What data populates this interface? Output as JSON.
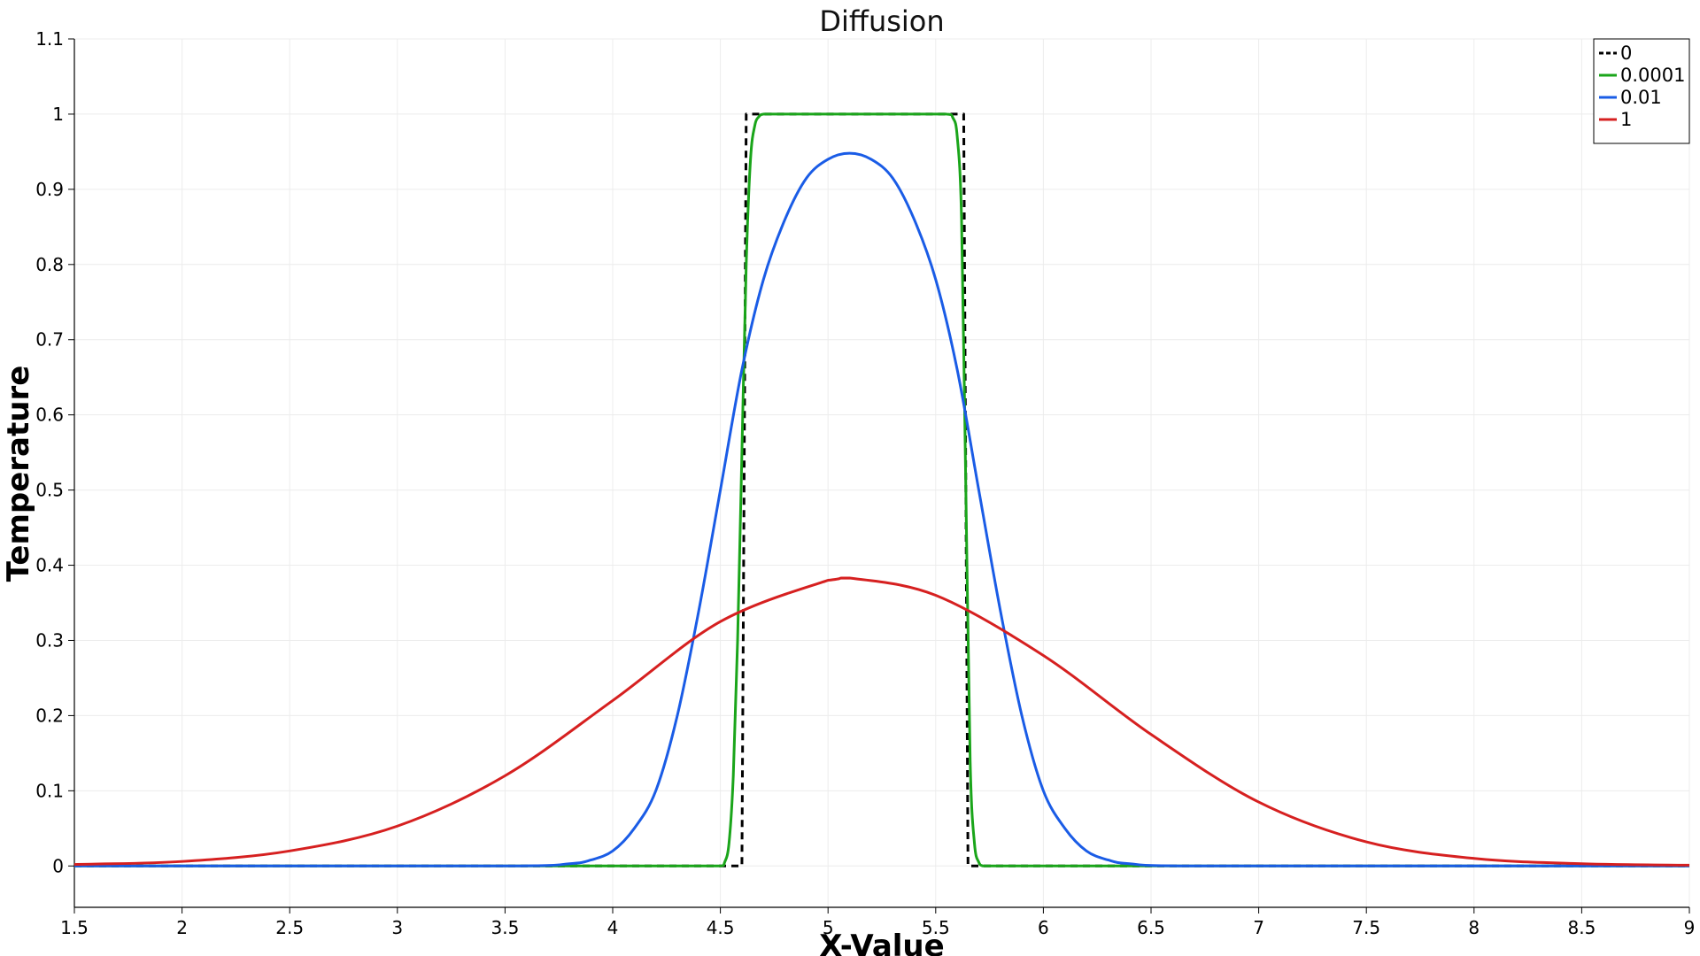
{
  "chart_data": {
    "type": "line",
    "title": "Diffusion",
    "xlabel": "X-Value",
    "ylabel": "Temperature",
    "xlim": [
      1.5,
      9
    ],
    "ylim": [
      -0.055,
      1.1
    ],
    "xticks": [
      1.5,
      2,
      2.5,
      3,
      3.5,
      4,
      4.5,
      5,
      5.5,
      6,
      6.5,
      7,
      7.5,
      8,
      8.5,
      9
    ],
    "xtick_labels": [
      "1.5",
      "2",
      "2.5",
      "3",
      "3.5",
      "4",
      "4.5",
      "5",
      "5.5",
      "6",
      "6.5",
      "7",
      "7.5",
      "8",
      "8.5",
      "9"
    ],
    "yticks": [
      0,
      0.1,
      0.2,
      0.3,
      0.4,
      0.5,
      0.6,
      0.7,
      0.8,
      0.9,
      1,
      1.1
    ],
    "ytick_labels": [
      "0",
      "0.1",
      "0.2",
      "0.3",
      "0.4",
      "0.5",
      "0.6",
      "0.7",
      "0.8",
      "0.9",
      "1",
      "1.1"
    ],
    "grid": true,
    "legend_position": "top-right",
    "series": [
      {
        "name": "0",
        "color": "#000000",
        "style": "dashed",
        "x": [
          1.5,
          4.55,
          4.6,
          4.61,
          4.62,
          4.63,
          5.6,
          5.62,
          5.63,
          5.64,
          5.65,
          5.7,
          9.0
        ],
        "y": [
          0,
          0,
          0,
          0.5,
          1,
          1,
          1,
          1,
          1,
          0.5,
          0,
          0,
          0
        ]
      },
      {
        "name": "0.0001",
        "color": "#1aa51a",
        "style": "solid",
        "x": [
          1.5,
          4.5,
          4.52,
          4.54,
          4.56,
          4.58,
          4.6,
          4.62,
          4.64,
          4.66,
          4.68,
          4.7,
          4.75,
          5.55,
          5.58,
          5.6,
          5.62,
          5.64,
          5.66,
          5.68,
          5.7,
          5.72,
          5.75,
          9.0
        ],
        "y": [
          0,
          0,
          0.005,
          0.03,
          0.12,
          0.3,
          0.55,
          0.8,
          0.94,
          0.985,
          0.997,
          1,
          1,
          1,
          0.995,
          0.97,
          0.86,
          0.5,
          0.14,
          0.03,
          0.005,
          0,
          0,
          0
        ]
      },
      {
        "name": "0.01",
        "color": "#1a5ce6",
        "style": "solid",
        "x": [
          1.5,
          3.5,
          3.8,
          3.9,
          4.0,
          4.1,
          4.2,
          4.3,
          4.4,
          4.5,
          4.6,
          4.7,
          4.8,
          4.9,
          5.0,
          5.1,
          5.2,
          5.3,
          5.4,
          5.5,
          5.6,
          5.7,
          5.8,
          5.9,
          6.0,
          6.1,
          6.2,
          6.3,
          6.4,
          6.7,
          9.0
        ],
        "y": [
          0,
          0,
          0.003,
          0.008,
          0.02,
          0.05,
          0.1,
          0.2,
          0.34,
          0.5,
          0.66,
          0.78,
          0.86,
          0.915,
          0.94,
          0.948,
          0.94,
          0.915,
          0.86,
          0.78,
          0.66,
          0.5,
          0.34,
          0.2,
          0.1,
          0.05,
          0.02,
          0.008,
          0.003,
          0,
          0
        ]
      },
      {
        "name": "1",
        "color": "#d62020",
        "style": "solid",
        "x": [
          1.5,
          2.0,
          2.5,
          3.0,
          3.5,
          4.0,
          4.5,
          5.0,
          5.1,
          5.5,
          6.0,
          6.5,
          7.0,
          7.5,
          8.0,
          8.5,
          9.0
        ],
        "y": [
          0.002,
          0.006,
          0.02,
          0.053,
          0.12,
          0.22,
          0.325,
          0.38,
          0.383,
          0.36,
          0.28,
          0.175,
          0.085,
          0.032,
          0.01,
          0.003,
          0.001
        ]
      }
    ]
  }
}
